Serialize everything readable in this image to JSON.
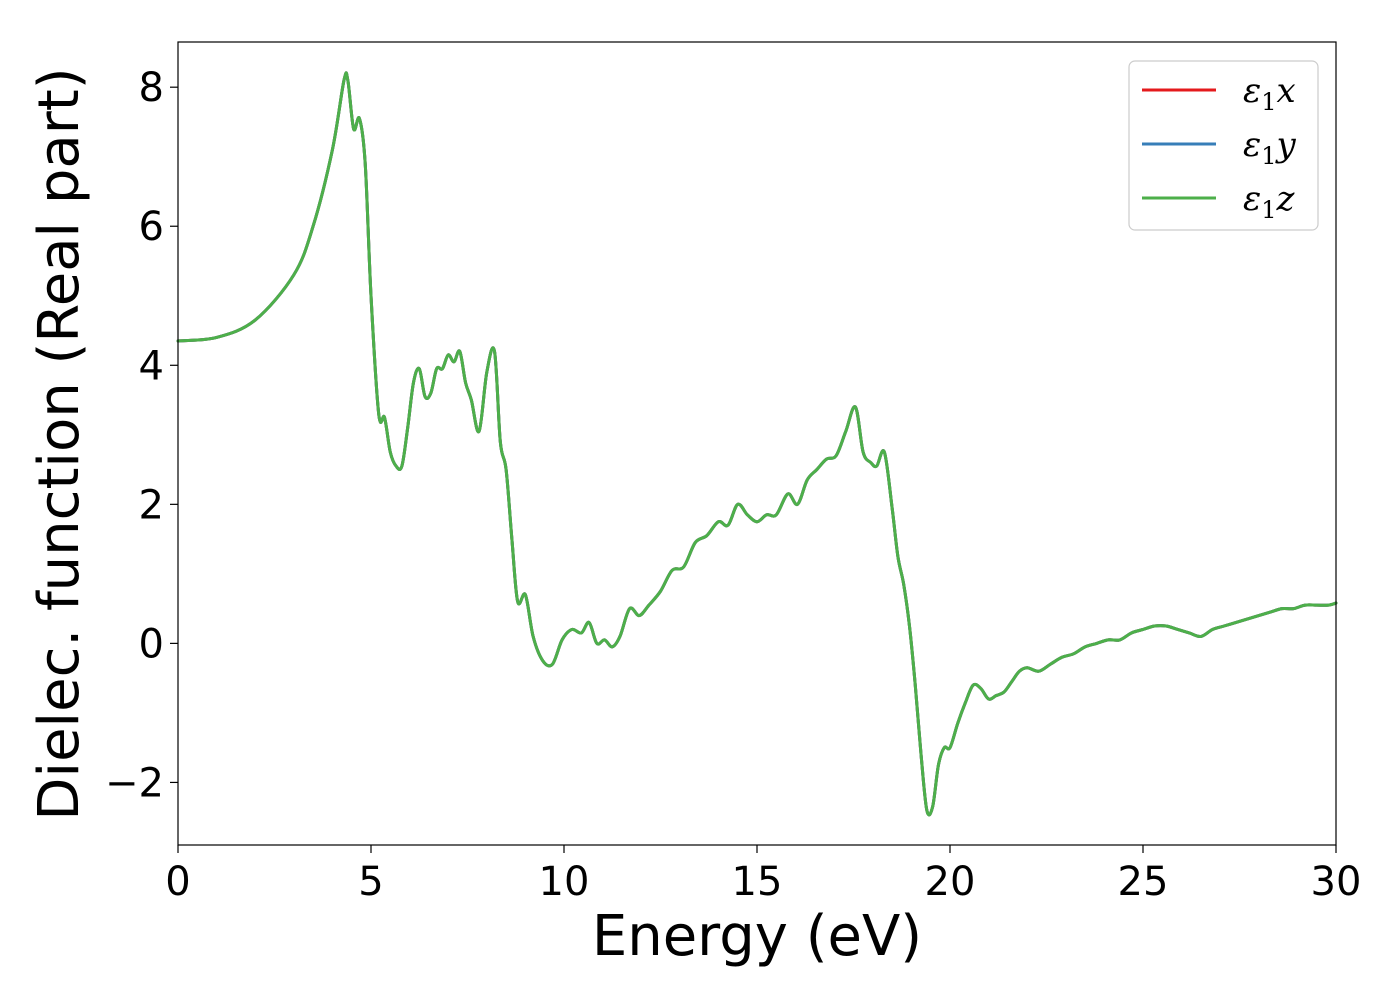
{
  "chart_data": {
    "type": "line",
    "title": "",
    "xlabel": "Energy (eV)",
    "ylabel": "Dielec. function (Real part)",
    "xlim": [
      0,
      30
    ],
    "ylim": [
      -2.9,
      8.65
    ],
    "xticks": [
      0,
      5,
      10,
      15,
      20,
      25,
      30
    ],
    "xtick_labels": [
      "0",
      "5",
      "10",
      "15",
      "20",
      "25",
      "30"
    ],
    "yticks": [
      -2,
      0,
      2,
      4,
      6,
      8
    ],
    "ytick_labels": [
      "−2",
      "0",
      "2",
      "4",
      "6",
      "8"
    ],
    "grid": false,
    "legend_position": "top-right",
    "series": [
      {
        "name": "ε1x",
        "legend_base": "ε",
        "legend_sub": "1",
        "legend_var": "x",
        "color": "#e41a1c",
        "x": [
          0,
          1,
          2,
          3,
          3.5,
          4.0,
          4.3,
          4.4,
          4.55,
          4.7,
          4.85,
          5.0,
          5.2,
          5.35,
          5.5,
          5.65,
          5.8,
          5.95,
          6.1,
          6.25,
          6.4,
          6.55,
          6.7,
          6.85,
          7.0,
          7.15,
          7.3,
          7.45,
          7.6,
          7.8,
          8.0,
          8.2,
          8.35,
          8.5,
          8.65,
          8.8,
          9.0,
          9.2,
          9.45,
          9.7,
          9.95,
          10.2,
          10.45,
          10.65,
          10.85,
          11.05,
          11.25,
          11.45,
          11.7,
          11.95,
          12.2,
          12.5,
          12.8,
          13.1,
          13.4,
          13.7,
          14.0,
          14.25,
          14.5,
          14.75,
          15.0,
          15.25,
          15.5,
          15.8,
          16.05,
          16.3,
          16.55,
          16.8,
          17.05,
          17.3,
          17.55,
          17.75,
          17.95,
          18.1,
          18.3,
          18.5,
          18.65,
          18.8,
          18.95,
          19.1,
          19.25,
          19.4,
          19.55,
          19.7,
          19.85,
          20.0,
          20.2,
          20.4,
          20.6,
          20.8,
          21.0,
          21.2,
          21.4,
          21.6,
          21.8,
          22.0,
          22.3,
          22.6,
          22.9,
          23.2,
          23.5,
          23.8,
          24.1,
          24.4,
          24.7,
          25.0,
          25.3,
          25.6,
          25.9,
          26.2,
          26.5,
          26.8,
          27.1,
          27.4,
          27.7,
          28.0,
          28.3,
          28.6,
          28.9,
          29.2,
          29.5,
          29.8,
          30.0
        ],
        "y": [
          4.35,
          4.4,
          4.65,
          5.3,
          6.0,
          7.1,
          8.1,
          8.1,
          7.4,
          7.55,
          6.9,
          5.0,
          3.3,
          3.25,
          2.75,
          2.55,
          2.55,
          3.1,
          3.75,
          3.95,
          3.55,
          3.6,
          3.95,
          3.95,
          4.15,
          4.05,
          4.2,
          3.75,
          3.5,
          3.05,
          3.9,
          4.2,
          2.9,
          2.5,
          1.5,
          0.6,
          0.7,
          0.1,
          -0.25,
          -0.3,
          0.05,
          0.2,
          0.15,
          0.3,
          0.0,
          0.05,
          -0.05,
          0.1,
          0.5,
          0.4,
          0.55,
          0.75,
          1.05,
          1.1,
          1.45,
          1.55,
          1.75,
          1.7,
          2.0,
          1.85,
          1.75,
          1.85,
          1.85,
          2.15,
          2.0,
          2.35,
          2.5,
          2.65,
          2.7,
          3.05,
          3.4,
          2.75,
          2.6,
          2.55,
          2.75,
          1.95,
          1.25,
          0.85,
          0.25,
          -0.6,
          -1.6,
          -2.4,
          -2.35,
          -1.75,
          -1.5,
          -1.5,
          -1.15,
          -0.85,
          -0.6,
          -0.65,
          -0.8,
          -0.75,
          -0.7,
          -0.55,
          -0.4,
          -0.35,
          -0.4,
          -0.3,
          -0.2,
          -0.15,
          -0.05,
          0.0,
          0.05,
          0.05,
          0.15,
          0.2,
          0.25,
          0.25,
          0.2,
          0.15,
          0.1,
          0.2,
          0.25,
          0.3,
          0.35,
          0.4,
          0.45,
          0.5,
          0.5,
          0.55,
          0.55,
          0.55,
          0.58
        ]
      },
      {
        "name": "ε1y",
        "legend_base": "ε",
        "legend_sub": "1",
        "legend_var": "y",
        "color": "#377eb8",
        "x": [
          0,
          1,
          2,
          3,
          3.5,
          4.0,
          4.3,
          4.4,
          4.55,
          4.7,
          4.85,
          5.0,
          5.2,
          5.35,
          5.5,
          5.65,
          5.8,
          5.95,
          6.1,
          6.25,
          6.4,
          6.55,
          6.7,
          6.85,
          7.0,
          7.15,
          7.3,
          7.45,
          7.6,
          7.8,
          8.0,
          8.2,
          8.35,
          8.5,
          8.65,
          8.8,
          9.0,
          9.2,
          9.45,
          9.7,
          9.95,
          10.2,
          10.45,
          10.65,
          10.85,
          11.05,
          11.25,
          11.45,
          11.7,
          11.95,
          12.2,
          12.5,
          12.8,
          13.1,
          13.4,
          13.7,
          14.0,
          14.25,
          14.5,
          14.75,
          15.0,
          15.25,
          15.5,
          15.8,
          16.05,
          16.3,
          16.55,
          16.8,
          17.05,
          17.3,
          17.55,
          17.75,
          17.95,
          18.1,
          18.3,
          18.5,
          18.65,
          18.8,
          18.95,
          19.1,
          19.25,
          19.4,
          19.55,
          19.7,
          19.85,
          20.0,
          20.2,
          20.4,
          20.6,
          20.8,
          21.0,
          21.2,
          21.4,
          21.6,
          21.8,
          22.0,
          22.3,
          22.6,
          22.9,
          23.2,
          23.5,
          23.8,
          24.1,
          24.4,
          24.7,
          25.0,
          25.3,
          25.6,
          25.9,
          26.2,
          26.5,
          26.8,
          27.1,
          27.4,
          27.7,
          28.0,
          28.3,
          28.6,
          28.9,
          29.2,
          29.5,
          29.8,
          30.0
        ],
        "y": [
          4.35,
          4.4,
          4.65,
          5.3,
          6.0,
          7.1,
          8.1,
          8.1,
          7.4,
          7.55,
          6.9,
          5.0,
          3.3,
          3.25,
          2.75,
          2.55,
          2.55,
          3.1,
          3.75,
          3.95,
          3.55,
          3.6,
          3.95,
          3.95,
          4.15,
          4.05,
          4.2,
          3.75,
          3.5,
          3.05,
          3.9,
          4.2,
          2.9,
          2.5,
          1.5,
          0.6,
          0.7,
          0.1,
          -0.25,
          -0.3,
          0.05,
          0.2,
          0.15,
          0.3,
          0.0,
          0.05,
          -0.05,
          0.1,
          0.5,
          0.4,
          0.55,
          0.75,
          1.05,
          1.1,
          1.45,
          1.55,
          1.75,
          1.7,
          2.0,
          1.85,
          1.75,
          1.85,
          1.85,
          2.15,
          2.0,
          2.35,
          2.5,
          2.65,
          2.7,
          3.05,
          3.4,
          2.75,
          2.6,
          2.55,
          2.75,
          1.95,
          1.25,
          0.85,
          0.25,
          -0.6,
          -1.6,
          -2.4,
          -2.35,
          -1.75,
          -1.5,
          -1.5,
          -1.15,
          -0.85,
          -0.6,
          -0.65,
          -0.8,
          -0.75,
          -0.7,
          -0.55,
          -0.4,
          -0.35,
          -0.4,
          -0.3,
          -0.2,
          -0.15,
          -0.05,
          0.0,
          0.05,
          0.05,
          0.15,
          0.2,
          0.25,
          0.25,
          0.2,
          0.15,
          0.1,
          0.2,
          0.25,
          0.3,
          0.35,
          0.4,
          0.45,
          0.5,
          0.5,
          0.55,
          0.55,
          0.55,
          0.58
        ]
      },
      {
        "name": "ε1z",
        "legend_base": "ε",
        "legend_sub": "1",
        "legend_var": "z",
        "color": "#4daf4a",
        "x": [
          0,
          1,
          2,
          3,
          3.5,
          4.0,
          4.3,
          4.4,
          4.55,
          4.7,
          4.85,
          5.0,
          5.2,
          5.35,
          5.5,
          5.65,
          5.8,
          5.95,
          6.1,
          6.25,
          6.4,
          6.55,
          6.7,
          6.85,
          7.0,
          7.15,
          7.3,
          7.45,
          7.6,
          7.8,
          8.0,
          8.2,
          8.35,
          8.5,
          8.65,
          8.8,
          9.0,
          9.2,
          9.45,
          9.7,
          9.95,
          10.2,
          10.45,
          10.65,
          10.85,
          11.05,
          11.25,
          11.45,
          11.7,
          11.95,
          12.2,
          12.5,
          12.8,
          13.1,
          13.4,
          13.7,
          14.0,
          14.25,
          14.5,
          14.75,
          15.0,
          15.25,
          15.5,
          15.8,
          16.05,
          16.3,
          16.55,
          16.8,
          17.05,
          17.3,
          17.55,
          17.75,
          17.95,
          18.1,
          18.3,
          18.5,
          18.65,
          18.8,
          18.95,
          19.1,
          19.25,
          19.4,
          19.55,
          19.7,
          19.85,
          20.0,
          20.2,
          20.4,
          20.6,
          20.8,
          21.0,
          21.2,
          21.4,
          21.6,
          21.8,
          22.0,
          22.3,
          22.6,
          22.9,
          23.2,
          23.5,
          23.8,
          24.1,
          24.4,
          24.7,
          25.0,
          25.3,
          25.6,
          25.9,
          26.2,
          26.5,
          26.8,
          27.1,
          27.4,
          27.7,
          28.0,
          28.3,
          28.6,
          28.9,
          29.2,
          29.5,
          29.8,
          30.0
        ],
        "y": [
          4.35,
          4.4,
          4.65,
          5.3,
          6.0,
          7.1,
          8.1,
          8.1,
          7.4,
          7.55,
          6.9,
          5.0,
          3.3,
          3.25,
          2.75,
          2.55,
          2.55,
          3.1,
          3.75,
          3.95,
          3.55,
          3.6,
          3.95,
          3.95,
          4.15,
          4.05,
          4.2,
          3.75,
          3.5,
          3.05,
          3.9,
          4.2,
          2.9,
          2.5,
          1.5,
          0.6,
          0.7,
          0.1,
          -0.25,
          -0.3,
          0.05,
          0.2,
          0.15,
          0.3,
          0.0,
          0.05,
          -0.05,
          0.1,
          0.5,
          0.4,
          0.55,
          0.75,
          1.05,
          1.1,
          1.45,
          1.55,
          1.75,
          1.7,
          2.0,
          1.85,
          1.75,
          1.85,
          1.85,
          2.15,
          2.0,
          2.35,
          2.5,
          2.65,
          2.7,
          3.05,
          3.4,
          2.75,
          2.6,
          2.55,
          2.75,
          1.95,
          1.25,
          0.85,
          0.25,
          -0.6,
          -1.6,
          -2.4,
          -2.35,
          -1.75,
          -1.5,
          -1.5,
          -1.15,
          -0.85,
          -0.6,
          -0.65,
          -0.8,
          -0.75,
          -0.7,
          -0.55,
          -0.4,
          -0.35,
          -0.4,
          -0.3,
          -0.2,
          -0.15,
          -0.05,
          0.0,
          0.05,
          0.05,
          0.15,
          0.2,
          0.25,
          0.25,
          0.2,
          0.15,
          0.1,
          0.2,
          0.25,
          0.3,
          0.35,
          0.4,
          0.45,
          0.5,
          0.5,
          0.55,
          0.55,
          0.55,
          0.58
        ]
      }
    ]
  }
}
